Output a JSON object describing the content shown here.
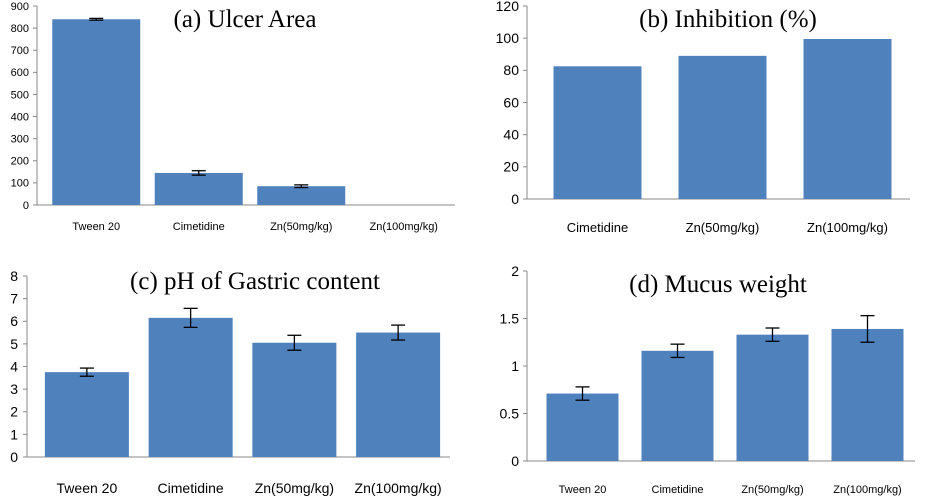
{
  "bar_color": "#4F81BD",
  "chart_data": [
    {
      "type": "bar",
      "title": "(a)  Ulcer Area",
      "categories": [
        "Tween 20",
        "Cimetidine",
        "Zn(50mg/kg)",
        "Zn(100mg/kg)"
      ],
      "values": [
        840,
        145,
        85,
        0
      ],
      "errors": [
        4,
        10,
        6,
        0
      ],
      "ylim": [
        0,
        900
      ],
      "yticks": [
        "0",
        "100",
        "200",
        "300",
        "400",
        "500",
        "600",
        "700",
        "800",
        "900"
      ],
      "error_bars": true
    },
    {
      "type": "bar",
      "title": "(b)  Inhibition (%)",
      "categories": [
        "Cimetidine",
        "Zn(50mg/kg)",
        "Zn(100mg/kg)"
      ],
      "values": [
        82.5,
        89,
        99.5
      ],
      "ylim": [
        0,
        120
      ],
      "yticks": [
        "0",
        "20",
        "40",
        "60",
        "80",
        "100",
        "120"
      ],
      "error_bars": false
    },
    {
      "type": "bar",
      "title": "(c)  pH of Gastric content",
      "categories": [
        "Tween 20",
        "Cimetidine",
        "Zn(50mg/kg)",
        "Zn(100mg/kg)"
      ],
      "values": [
        3.75,
        6.15,
        5.05,
        5.5
      ],
      "errors": [
        0.18,
        0.42,
        0.33,
        0.33
      ],
      "ylim": [
        0,
        8
      ],
      "yticks": [
        "0",
        "1",
        "2",
        "3",
        "4",
        "5",
        "6",
        "7",
        "8"
      ],
      "error_bars": true
    },
    {
      "type": "bar",
      "title": "(d)  Mucus weight",
      "categories": [
        "Tween 20",
        "Cimetidine",
        "Zn(50mg/kg)",
        "Zn(100mg/kg)"
      ],
      "values": [
        0.71,
        1.16,
        1.33,
        1.39
      ],
      "errors": [
        0.07,
        0.07,
        0.07,
        0.14
      ],
      "ylim": [
        0,
        2
      ],
      "yticks": [
        "0",
        "0.5",
        "1",
        "1.5",
        "2"
      ],
      "error_bars": true
    }
  ]
}
